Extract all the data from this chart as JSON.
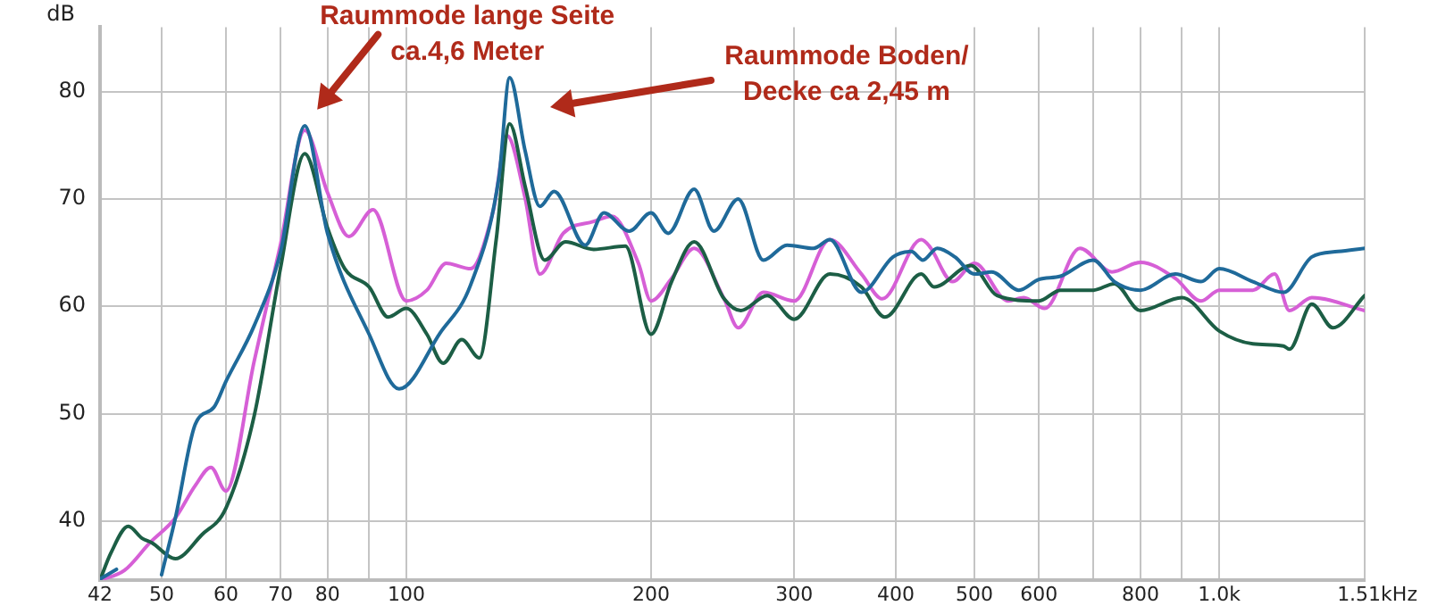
{
  "chart_data": {
    "type": "line",
    "ylabel": "dB",
    "xlim": [
      42,
      1510
    ],
    "ylim": [
      34.5,
      86
    ],
    "log": "x",
    "grid": true,
    "legend": false,
    "marker": "none",
    "line_style": "solid",
    "xticks": [
      42,
      50,
      60,
      70,
      80,
      {
        "value": 90,
        "label": null
      },
      100,
      200,
      300,
      400,
      500,
      600,
      {
        "value": 700,
        "label": null
      },
      800,
      {
        "value": 900,
        "label": null
      },
      {
        "value": 1000,
        "label": "1.0k"
      },
      {
        "value": 1510,
        "label": "1.51k"
      }
    ],
    "xlabel": "Hz",
    "yticks": [
      40,
      50,
      60,
      70,
      80
    ],
    "annotations": [
      {
        "text": "Raummode lange Seite\nca.4,6 Meter",
        "x": 75,
        "y": 77
      },
      "Raummode Boden/\nDecke ca 2,45 m"
    ],
    "series": [
      {
        "color": "#1f6a9a",
        "x": [
          42,
          44,
          47,
          50,
          52,
          55,
          58,
          60,
          65,
          70,
          75,
          80,
          90,
          98,
          110,
          120,
          130,
          134,
          140,
          146,
          152,
          166,
          175,
          188,
          200,
          210,
          226,
          239,
          256,
          275,
          294,
          317,
          332,
          363,
          397,
          418,
          432,
          450,
          473,
          500,
          525,
          567,
          600,
          638,
          700,
          743,
          800,
          883,
          950,
          1000,
          1100,
          1200,
          1300,
          1400,
          1510
        ],
        "values": [
          34.6,
          35.5,
          null,
          35,
          40.3,
          49,
          50.6,
          53,
          58.2,
          65,
          76.8,
          66.8,
          57.4,
          52.3,
          57.5,
          62,
          72,
          81.3,
          74.5,
          69.3,
          70.7,
          65.7,
          68.7,
          67,
          68.7,
          66.8,
          70.9,
          67,
          70,
          64.3,
          65.7,
          65.4,
          66.2,
          61.3,
          64.6,
          65.1,
          64.3,
          65.4,
          64.6,
          63,
          63.2,
          61.5,
          62.5,
          62.8,
          64.3,
          62.3,
          61.5,
          63,
          62.3,
          63.5,
          62.3,
          61.3,
          64.6,
          65.1,
          65.4
        ]
      },
      {
        "color": "#1c5e45",
        "x": [
          42,
          43.3,
          45.5,
          47.3,
          48.6,
          52,
          56,
          60,
          65,
          70,
          75,
          80,
          84,
          90,
          95,
          100,
          106,
          111,
          117,
          123,
          129,
          134,
          140,
          148,
          157,
          170,
          186,
          200,
          212,
          226,
          246,
          258,
          278,
          300,
          332,
          363,
          388,
          430,
          446,
          495,
          533,
          600,
          638,
          700,
          743,
          800,
          900,
          1000,
          1100,
          1200,
          1220,
          1300,
          1380,
          1510
        ],
        "values": [
          34.5,
          37,
          39.5,
          38.4,
          38,
          36.5,
          38.7,
          41.2,
          49.8,
          63.5,
          74.2,
          67.3,
          63.5,
          61.8,
          59,
          59.8,
          57.4,
          54.7,
          56.9,
          55.2,
          66.2,
          77,
          71.2,
          64.3,
          66,
          65.3,
          65.6,
          57.4,
          62.3,
          66,
          60.7,
          59.6,
          61,
          58.8,
          63,
          61.8,
          59,
          63,
          61.8,
          63.8,
          61,
          60.5,
          61.5,
          61.5,
          62.1,
          59.6,
          60.8,
          57.7,
          56.5,
          56.3,
          56,
          60.2,
          58,
          61
        ]
      },
      {
        "color": "#d65fd6",
        "x": [
          42,
          45,
          48.4,
          52,
          55,
          57.5,
          60,
          65,
          70,
          75,
          80,
          85,
          91,
          100,
          106,
          112,
          120,
          128,
          133,
          140,
          146,
          156,
          170,
          179,
          193,
          200,
          212,
          226,
          246,
          256,
          275,
          300,
          332,
          363,
          385,
          430,
          440,
          470,
          500,
          550,
          575,
          610,
          674,
          738,
          800,
          883,
          950,
          1000,
          1100,
          1170,
          1220,
          1300,
          1510
        ],
        "values": [
          34.5,
          35.4,
          38,
          40.3,
          43.3,
          45,
          42.8,
          54.9,
          65.7,
          76.4,
          70.6,
          66.5,
          69,
          60.5,
          61.5,
          64,
          63.5,
          69,
          75.9,
          70.1,
          63,
          66.8,
          67.9,
          68.4,
          64,
          60.5,
          62.6,
          65.4,
          60.7,
          58,
          61.3,
          60.5,
          66.2,
          63,
          60.7,
          66.2,
          65.6,
          62.3,
          64,
          60.5,
          60.8,
          59.8,
          65.4,
          63.2,
          64.1,
          62.6,
          60.5,
          61.5,
          61.5,
          63,
          59.6,
          60.8,
          59.6
        ]
      }
    ]
  }
}
